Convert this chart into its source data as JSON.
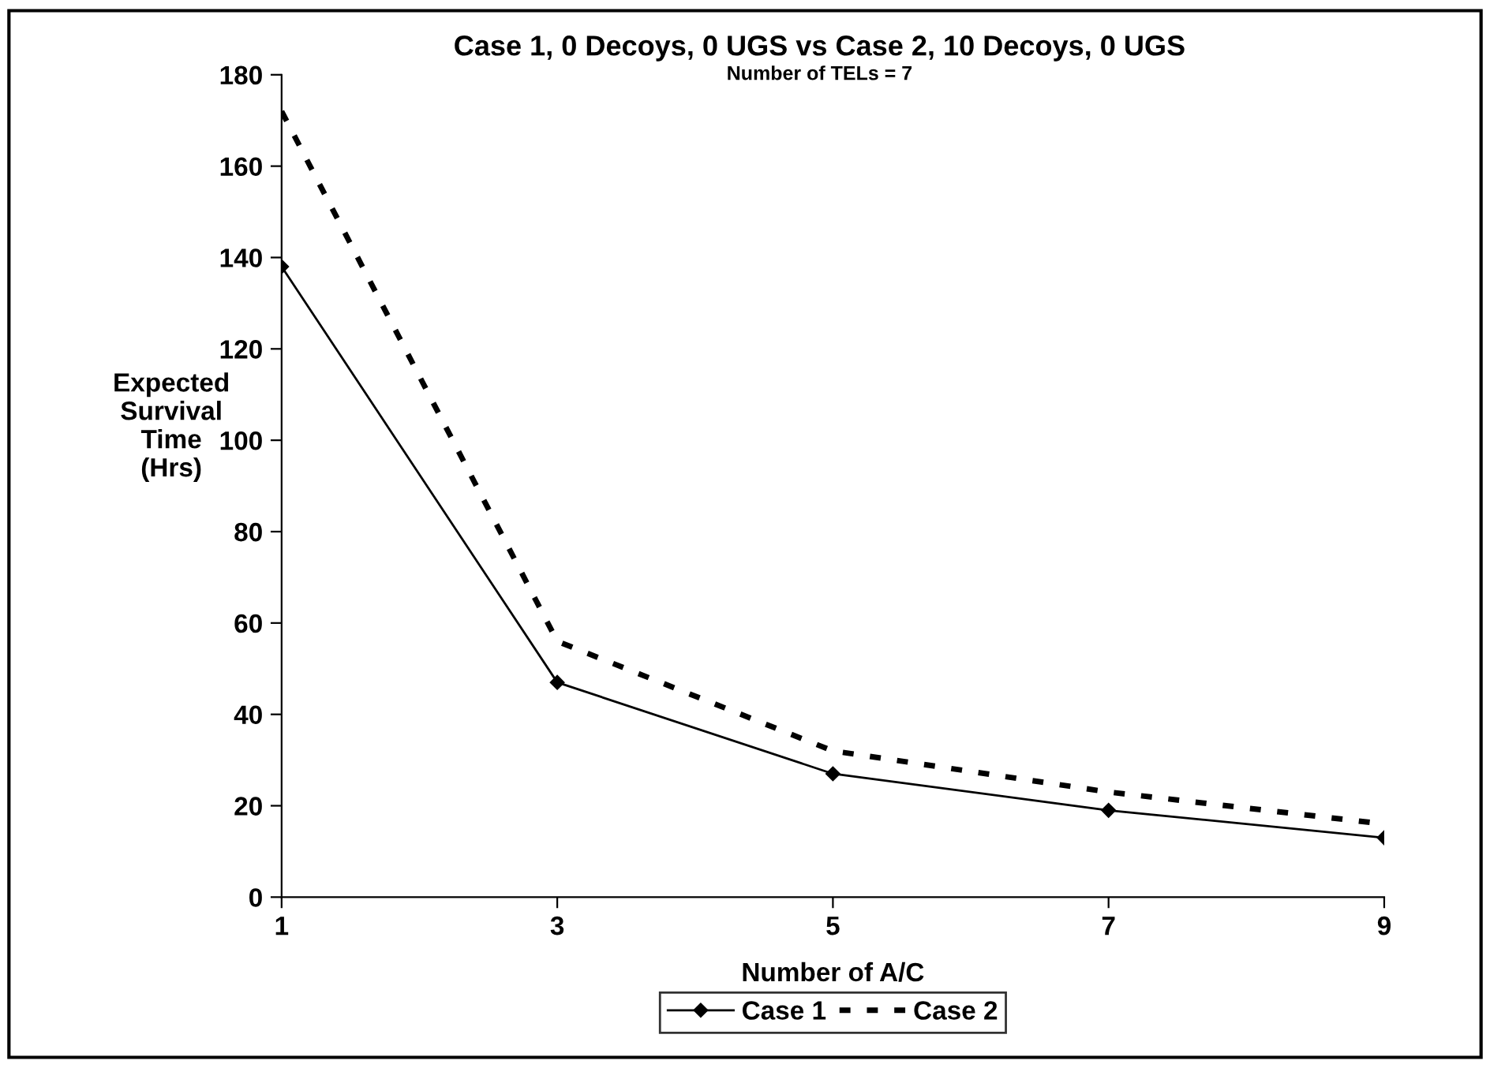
{
  "chart_data": {
    "type": "line",
    "title": "Case 1, 0 Decoys, 0 UGS vs Case 2, 10 Decoys, 0 UGS",
    "subtitle": "Number of TELs = 7",
    "xlabel": "Number of A/C",
    "ylabel": "Expected\nSurvival\nTime\n(Hrs)",
    "x": [
      1,
      3,
      5,
      7,
      9
    ],
    "series": [
      {
        "name": "Case 1",
        "color": "#000000",
        "values": [
          138,
          47,
          27,
          19,
          13
        ],
        "marker": "diamond",
        "line_style": "solid"
      },
      {
        "name": "Case 2",
        "color": "#000000",
        "values": [
          172,
          56,
          32,
          23,
          16
        ],
        "marker": "none",
        "line_style": "dashed"
      }
    ],
    "xlim": [
      1,
      9
    ],
    "xticks": [
      1,
      3,
      5,
      7,
      9
    ],
    "ylim": [
      0,
      180
    ],
    "yticks": [
      0,
      20,
      40,
      60,
      80,
      100,
      120,
      140,
      160,
      180
    ],
    "grid": false,
    "legend": "bottom"
  }
}
